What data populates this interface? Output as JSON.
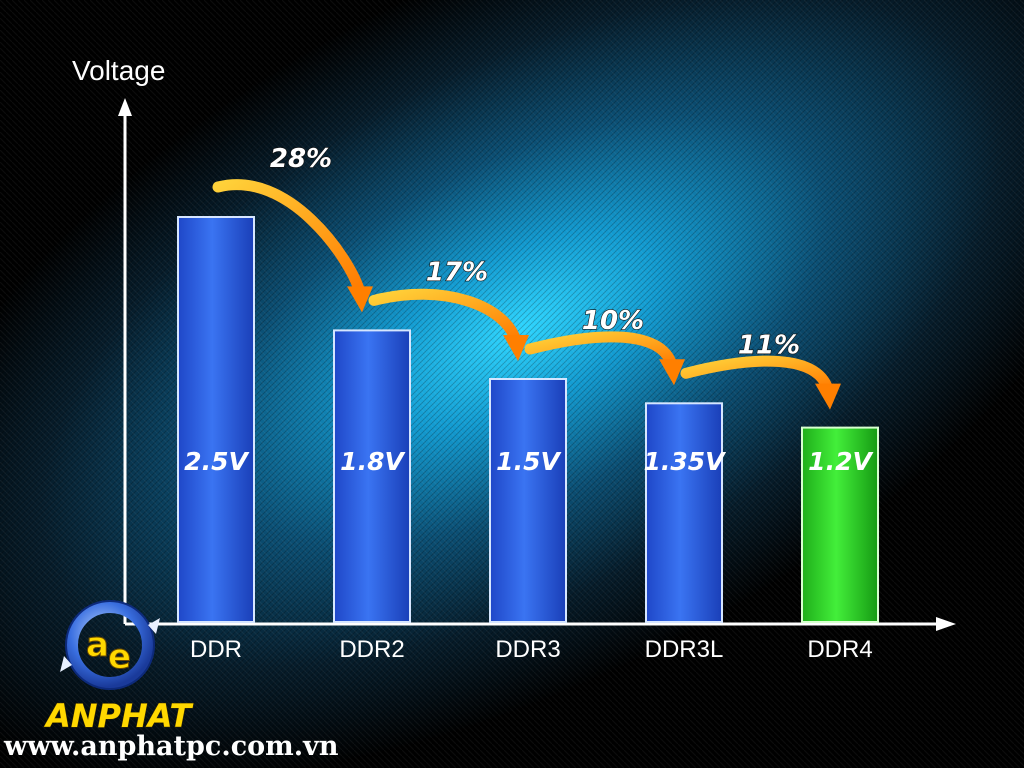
{
  "chart_data": {
    "type": "bar",
    "ylabel": "Voltage",
    "categories": [
      "DDR",
      "DDR2",
      "DDR3",
      "DDR3L",
      "DDR4"
    ],
    "values": [
      2.5,
      1.8,
      1.5,
      1.35,
      1.2
    ],
    "value_labels": [
      "2.5V",
      "1.8V",
      "1.5V",
      "1.35V",
      "1.2V"
    ],
    "reduction_labels": [
      "28%",
      "17%",
      "10%",
      "11%"
    ],
    "ylim": [
      0,
      2.5
    ],
    "grid": false,
    "colors": {
      "bar": "#2f62e6",
      "highlight_bar": "#2fd62a",
      "arrow": "#ff9a10",
      "axis": "#ffffff"
    },
    "highlight_category": "DDR4"
  },
  "brand": {
    "logo_icon": "ae-logo-icon",
    "name": "ANPHAT",
    "url": "www.anphatpc.com.vn"
  }
}
